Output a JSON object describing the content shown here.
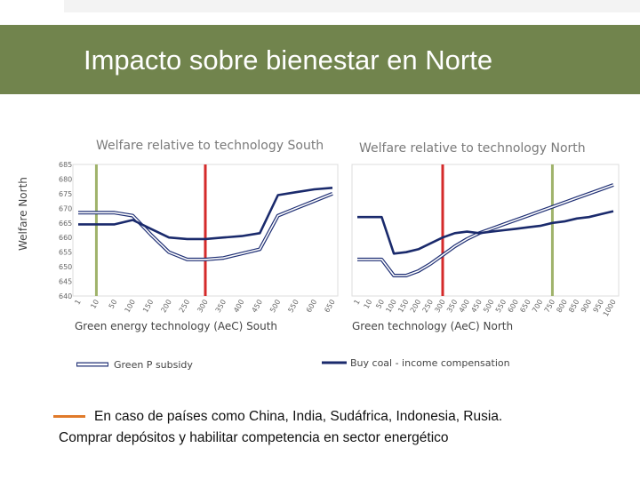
{
  "title": "Impacto sobre bienestar en Norte",
  "caption": {
    "line1": "En caso de países como China, India, Sudáfrica, Indonesia, Rusia.",
    "line2": "Comprar depósitos y habilitar competencia en sector energético"
  },
  "colors": {
    "banner": "#71844d",
    "series_dark": "#1a2a6c",
    "series_light_stroke": "#1f2f74",
    "marker_green": "#9fb36a",
    "marker_red": "#d42a2a",
    "caption_marker": "#e07a2a"
  },
  "ylabel": "Welfare North",
  "legend": {
    "green_p_subsidy": "Green P subsidy",
    "buy_coal": "Buy coal - income compensation"
  },
  "chart_data": [
    {
      "type": "line",
      "title": "Welfare relative to technology South",
      "xlabel": "Green energy technology (AeC) South",
      "ylabel": "Welfare North",
      "ylim": [
        640,
        685
      ],
      "yticks": [
        640,
        645,
        650,
        655,
        660,
        665,
        670,
        675,
        680,
        685
      ],
      "categories": [
        "1",
        "10",
        "50",
        "100",
        "150",
        "200",
        "250",
        "300",
        "350",
        "400",
        "450",
        "500",
        "550",
        "600",
        "650"
      ],
      "series": [
        {
          "name": "Green P subsidy",
          "values": [
            668.5,
            668.5,
            668.5,
            667.5,
            661,
            655,
            652.5,
            652.5,
            653,
            654.5,
            656,
            667.5,
            670,
            672.5,
            675
          ]
        },
        {
          "name": "Buy coal - income compensation",
          "values": [
            664.5,
            664.5,
            664.5,
            666,
            663,
            660,
            659.5,
            659.5,
            660,
            660.5,
            661.5,
            674.5,
            675.5,
            676.5,
            677
          ]
        }
      ],
      "markers": [
        {
          "category": "10",
          "color": "green"
        },
        {
          "category": "300",
          "color": "red"
        }
      ],
      "grid": false
    },
    {
      "type": "line",
      "title": "Welfare relative to technology North",
      "xlabel": "Green technology (AeC) North",
      "ylim": [
        640,
        685
      ],
      "categories": [
        "1",
        "10",
        "50",
        "100",
        "150",
        "200",
        "250",
        "300",
        "350",
        "400",
        "450",
        "500",
        "550",
        "600",
        "650",
        "700",
        "750",
        "800",
        "850",
        "900",
        "950",
        "1000"
      ],
      "series": [
        {
          "name": "Green P subsidy",
          "values": [
            652.5,
            652.5,
            652.5,
            647,
            647,
            648.5,
            651,
            654,
            657,
            659.5,
            661.5,
            663,
            664.5,
            666,
            667.5,
            669,
            670.5,
            672,
            673.5,
            675,
            676.5,
            678
          ]
        },
        {
          "name": "Buy coal - income compensation",
          "values": [
            667,
            667,
            667,
            654.5,
            655,
            656,
            658,
            660,
            661.5,
            662,
            661.5,
            662,
            662.5,
            663,
            663.5,
            664,
            665,
            665.5,
            666.5,
            667,
            668,
            669
          ]
        }
      ],
      "markers": [
        {
          "category": "300",
          "color": "red"
        },
        {
          "category": "750",
          "color": "green"
        }
      ],
      "grid": false
    }
  ]
}
